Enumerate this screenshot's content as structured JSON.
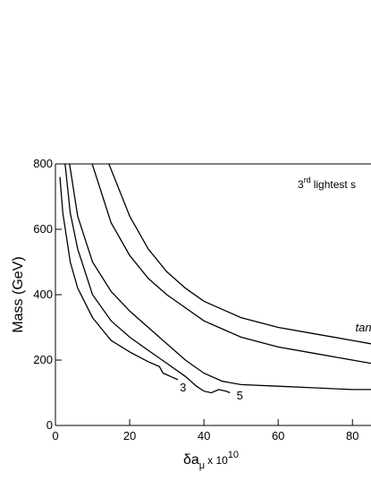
{
  "chart_data": {
    "type": "line",
    "ylabel": "Mass (GeV)",
    "xlabel_parts": [
      "δa",
      "μ",
      "x 10",
      "10"
    ],
    "xlim": [
      0,
      85
    ],
    "ylim": [
      0,
      800
    ],
    "xticks": [
      0,
      20,
      40,
      60,
      80
    ],
    "yticks": [
      0,
      200,
      400,
      600,
      800
    ],
    "series": [
      {
        "color": "#000000",
        "x": [
          1.2,
          2,
          4,
          6,
          10,
          15,
          20,
          25,
          28,
          29,
          30,
          31,
          33
        ],
        "values": [
          760,
          650,
          500,
          420,
          330,
          260,
          225,
          195,
          180,
          160,
          155,
          150,
          140
        ]
      },
      {
        "color": "#000000",
        "x": [
          2.6,
          4,
          6,
          10,
          15,
          20,
          25,
          30,
          35,
          38,
          40,
          42,
          44,
          46,
          47
        ],
        "values": [
          800,
          650,
          540,
          400,
          320,
          270,
          230,
          190,
          150,
          120,
          105,
          100,
          110,
          105,
          100
        ]
      },
      {
        "color": "#000000",
        "x": [
          3.8,
          6,
          10,
          15,
          20,
          25,
          30,
          35,
          40,
          45,
          50,
          60,
          70,
          80,
          85
        ],
        "values": [
          800,
          640,
          500,
          410,
          350,
          300,
          250,
          200,
          160,
          135,
          125,
          120,
          115,
          110,
          110
        ]
      },
      {
        "color": "#000000",
        "x": [
          9.9,
          15,
          20,
          25,
          30,
          40,
          50,
          60,
          70,
          80,
          85
        ],
        "values": [
          800,
          620,
          520,
          450,
          400,
          320,
          270,
          240,
          220,
          200,
          190
        ]
      },
      {
        "color": "#000000",
        "x": [
          14.4,
          20,
          25,
          30,
          35,
          40,
          50,
          60,
          70,
          80,
          85
        ],
        "values": [
          800,
          640,
          540,
          470,
          420,
          380,
          330,
          300,
          280,
          260,
          250
        ]
      }
    ],
    "annotations": [
      {
        "text": "3",
        "x": 33.5,
        "y": 104
      },
      {
        "text": "5",
        "x": 48.8,
        "y": 80
      },
      {
        "text": "tan",
        "x": 80.8,
        "y": 287,
        "italic": true
      }
    ],
    "corner_note_parts": [
      "3",
      "rd",
      "lightest s"
    ]
  }
}
